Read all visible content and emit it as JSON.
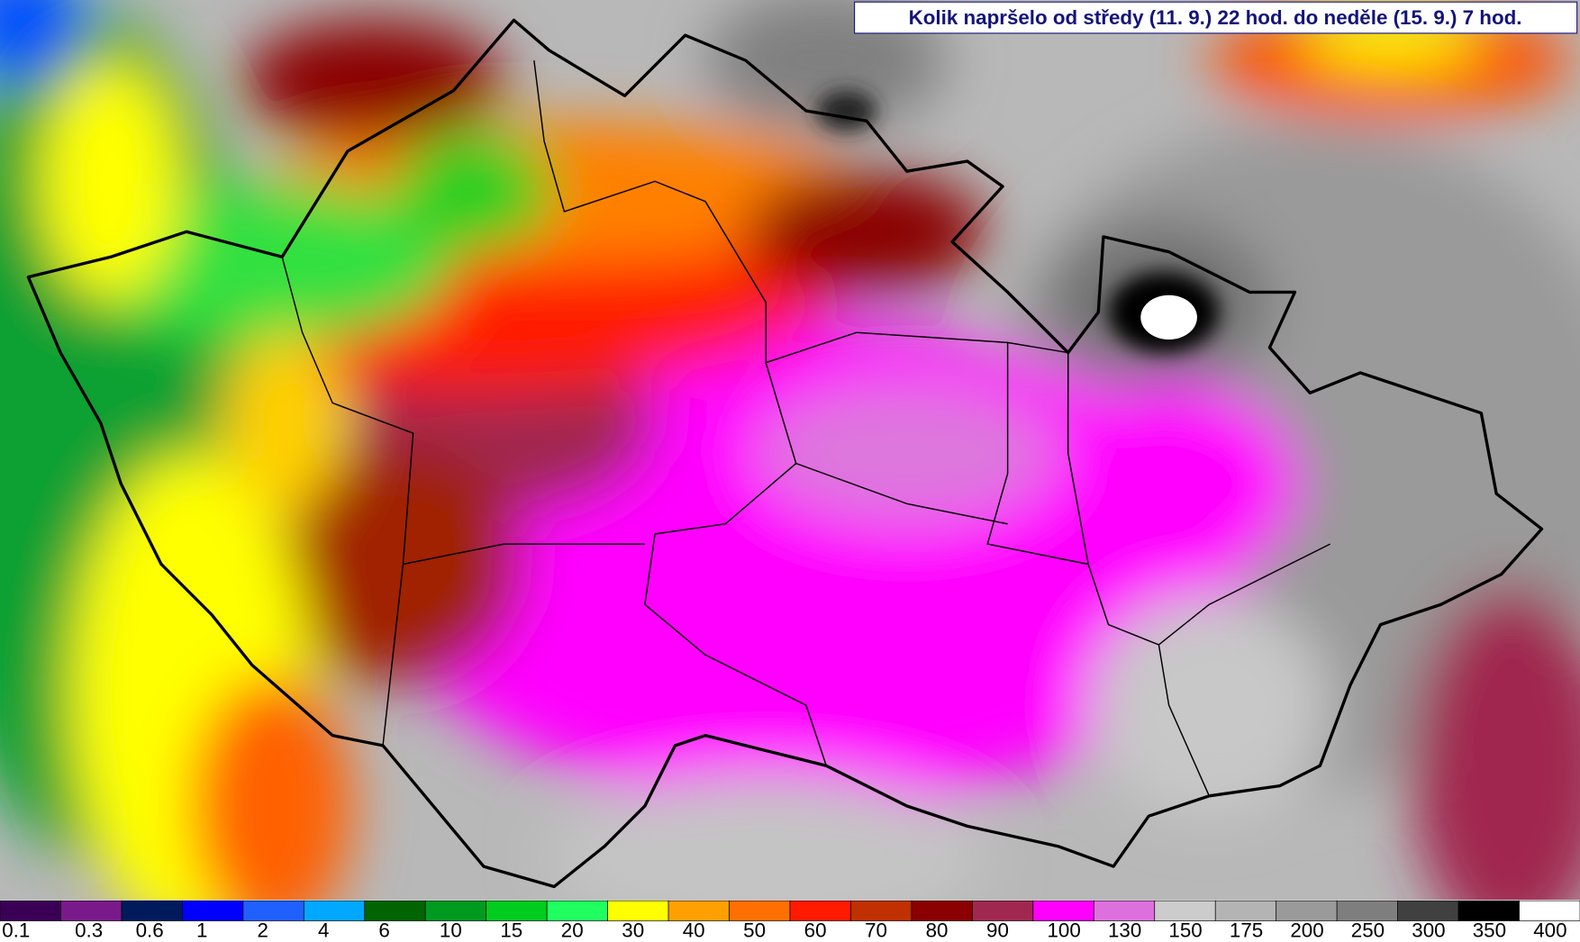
{
  "title": "Kolik napršelo od středy (11. 9.) 22 hod. do neděle (15. 9.) 7 hod.",
  "legend": {
    "labels": [
      0.1,
      0.3,
      0.6,
      1,
      2,
      4,
      6,
      10,
      15,
      20,
      30,
      40,
      50,
      60,
      70,
      80,
      90,
      100,
      130,
      150,
      175,
      200,
      250,
      300,
      350,
      400
    ],
    "colors": [
      "#3a0055",
      "#7a1a8a",
      "#001a5c",
      "#0000ff",
      "#2060ff",
      "#00a8ff",
      "#006400",
      "#009a20",
      "#00cc20",
      "#20ff60",
      "#ffff00",
      "#ffa000",
      "#ff7000",
      "#ff1a00",
      "#c03000",
      "#8b0000",
      "#a02850",
      "#ff00ff",
      "#dd70dd",
      "#cccccc",
      "#b4b4b4",
      "#9a9a9a",
      "#7e7e7e",
      "#404040",
      "#000000",
      "#ffffff"
    ]
  }
}
